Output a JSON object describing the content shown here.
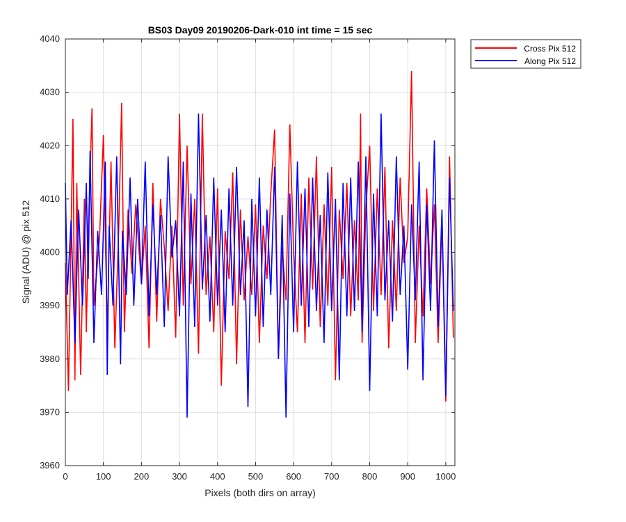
{
  "chart_data": {
    "type": "line",
    "title": "BS03 Day09 20190206-Dark-010 int time = 15 sec",
    "xlabel": "Pixels (both dirs on array)",
    "ylabel": "Signal (ADU) @ pix 512",
    "xlim": [
      0,
      1024
    ],
    "ylim": [
      3960,
      4040
    ],
    "xticks": [
      0,
      100,
      200,
      300,
      400,
      500,
      600,
      700,
      800,
      900,
      1000
    ],
    "yticks": [
      3960,
      3970,
      3980,
      3990,
      4000,
      4010,
      4020,
      4030,
      4040
    ],
    "grid": true,
    "legend_position": "outside-top-right",
    "series": [
      {
        "name": "Cross Pix 512",
        "color": "#ff0000",
        "x": [
          0,
          8,
          20,
          25,
          30,
          40,
          50,
          55,
          60,
          70,
          75,
          90,
          100,
          110,
          120,
          130,
          140,
          148,
          155,
          165,
          175,
          185,
          200,
          210,
          220,
          230,
          240,
          250,
          260,
          270,
          280,
          290,
          300,
          310,
          320,
          330,
          340,
          350,
          360,
          370,
          380,
          390,
          400,
          410,
          420,
          430,
          440,
          450,
          460,
          470,
          480,
          490,
          500,
          510,
          520,
          530,
          540,
          550,
          560,
          570,
          580,
          590,
          600,
          610,
          620,
          630,
          640,
          650,
          660,
          670,
          680,
          690,
          700,
          710,
          720,
          730,
          740,
          750,
          760,
          770,
          776,
          780,
          790,
          800,
          810,
          820,
          830,
          840,
          850,
          860,
          870,
          880,
          890,
          900,
          910,
          920,
          930,
          940,
          950,
          960,
          970,
          980,
          990,
          1000,
          1010,
          1020
        ],
        "y": [
          3998,
          3974,
          4025,
          3976,
          4013,
          3977,
          4010,
          3985,
          4003,
          4027,
          3990,
          4003,
          4022,
          3985,
          4017,
          3982,
          4004,
          4028,
          3985,
          4008,
          3996,
          4009,
          3994,
          4005,
          3982,
          4013,
          3987,
          4010,
          4001,
          3989,
          4005,
          3984,
          4026,
          3990,
          4020,
          3994,
          4010,
          3981,
          4026,
          3992,
          4003,
          3985,
          4012,
          3975,
          4004,
          3995,
          4015,
          3979,
          4008,
          3991,
          4003,
          3992,
          4009,
          3983,
          4005,
          3995,
          4011,
          4023,
          3980,
          4001,
          3991,
          4024,
          4000,
          3985,
          4011,
          3983,
          4014,
          3993,
          4018,
          3986,
          4009,
          3990,
          4016,
          3976,
          4008,
          3995,
          4013,
          3988,
          4006,
          3991,
          4026,
          3983,
          4008,
          4020,
          3989,
          4012,
          3992,
          4016,
          3982,
          4006,
          3989,
          4014,
          3998,
          4003,
          4034,
          3983,
          4005,
          3988,
          4012,
          3994,
          4009,
          3983,
          4006,
          3972,
          4018,
          3984
        ]
      },
      {
        "name": "Along Pix 512",
        "color": "#0000ff",
        "x": [
          0,
          5,
          15,
          25,
          35,
          45,
          55,
          60,
          65,
          75,
          85,
          95,
          105,
          110,
          115,
          125,
          135,
          145,
          150,
          160,
          170,
          180,
          190,
          200,
          210,
          220,
          230,
          240,
          250,
          260,
          270,
          280,
          290,
          300,
          310,
          320,
          330,
          340,
          350,
          360,
          370,
          380,
          390,
          400,
          410,
          420,
          430,
          440,
          450,
          460,
          470,
          480,
          490,
          500,
          510,
          520,
          530,
          540,
          550,
          560,
          570,
          580,
          590,
          600,
          610,
          620,
          630,
          640,
          650,
          660,
          670,
          680,
          690,
          700,
          710,
          720,
          730,
          740,
          750,
          760,
          770,
          780,
          790,
          800,
          810,
          820,
          830,
          840,
          850,
          860,
          870,
          880,
          890,
          900,
          910,
          920,
          930,
          940,
          950,
          960,
          970,
          980,
          990,
          1000,
          1010,
          1020
        ],
        "y": [
          4013,
          3992,
          4006,
          3983,
          4008,
          3990,
          4013,
          3995,
          4019,
          3983,
          4004,
          3992,
          4017,
          3977,
          4005,
          3990,
          4018,
          3979,
          4004,
          3992,
          4014,
          3990,
          4010,
          3994,
          4017,
          3988,
          4009,
          3992,
          4007,
          3986,
          4018,
          3999,
          4006,
          3988,
          4017,
          3969,
          4011,
          3986,
          4026,
          3993,
          4007,
          3987,
          4014,
          3990,
          4008,
          3985,
          4012,
          3990,
          4016,
          3992,
          4006,
          3971,
          4010,
          3988,
          4014,
          3986,
          4008,
          3992,
          4016,
          3980,
          4007,
          3969,
          4011,
          3985,
          4017,
          3990,
          4012,
          3986,
          4014,
          3989,
          4007,
          3983,
          4015,
          3989,
          4010,
          3976,
          4013,
          3988,
          4014,
          3989,
          4017,
          3985,
          4018,
          3974,
          4011,
          3988,
          4026,
          3991,
          4006,
          3987,
          4018,
          3992,
          4005,
          3978,
          4009,
          3991,
          4017,
          3976,
          4009,
          3989,
          4021,
          3986,
          4008,
          3973,
          4014,
          3989
        ]
      }
    ]
  }
}
